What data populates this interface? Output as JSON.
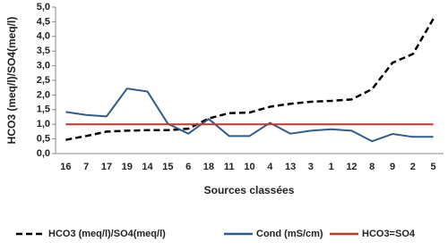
{
  "chart_data": {
    "type": "line",
    "y_label": "HCO3 (meq/l)/SO4(meq/l)",
    "x_label": "Sources classées",
    "categories": [
      "16",
      "7",
      "17",
      "19",
      "14",
      "15",
      "6",
      "18",
      "11",
      "10",
      "4",
      "13",
      "3",
      "1",
      "12",
      "8",
      "9",
      "2",
      "5"
    ],
    "series": [
      {
        "name": "HCO3 (meq/l)/SO4(meq/l)",
        "color": "#000000",
        "style": "dashed",
        "values": [
          0.47,
          0.6,
          0.75,
          0.78,
          0.8,
          0.8,
          0.85,
          1.2,
          1.38,
          1.4,
          1.6,
          1.7,
          1.77,
          1.8,
          1.85,
          2.2,
          3.1,
          3.4,
          4.6
        ]
      },
      {
        "name": "Cond (mS/cm)",
        "color": "#2f5d8a",
        "style": "solid",
        "values": [
          1.42,
          1.32,
          1.27,
          2.22,
          2.12,
          1.02,
          0.68,
          1.18,
          0.6,
          0.6,
          1.05,
          0.68,
          0.78,
          0.83,
          0.78,
          0.42,
          0.67,
          0.57,
          0.57
        ]
      },
      {
        "name": "HCO3=SO4",
        "color": "#c0392b",
        "style": "solid",
        "values": [
          1,
          1,
          1,
          1,
          1,
          1,
          1,
          1,
          1,
          1,
          1,
          1,
          1,
          1,
          1,
          1,
          1,
          1,
          1
        ]
      }
    ],
    "ylim": [
      0,
      5
    ],
    "yticks": [
      {
        "value": 0,
        "label": "0,0"
      },
      {
        "value": 0.5,
        "label": "0,5"
      },
      {
        "value": 1,
        "label": "1,0"
      },
      {
        "value": 1.5,
        "label": "1,5"
      },
      {
        "value": 2,
        "label": "2,0"
      },
      {
        "value": 2.5,
        "label": "2,5"
      },
      {
        "value": 3,
        "label": "3,0"
      },
      {
        "value": 3.5,
        "label": "3,5"
      },
      {
        "value": 4,
        "label": "4,0"
      },
      {
        "value": 4.5,
        "label": "4,5"
      },
      {
        "value": 5,
        "label": "5,0"
      }
    ],
    "grid": false,
    "legend": "bottom"
  }
}
